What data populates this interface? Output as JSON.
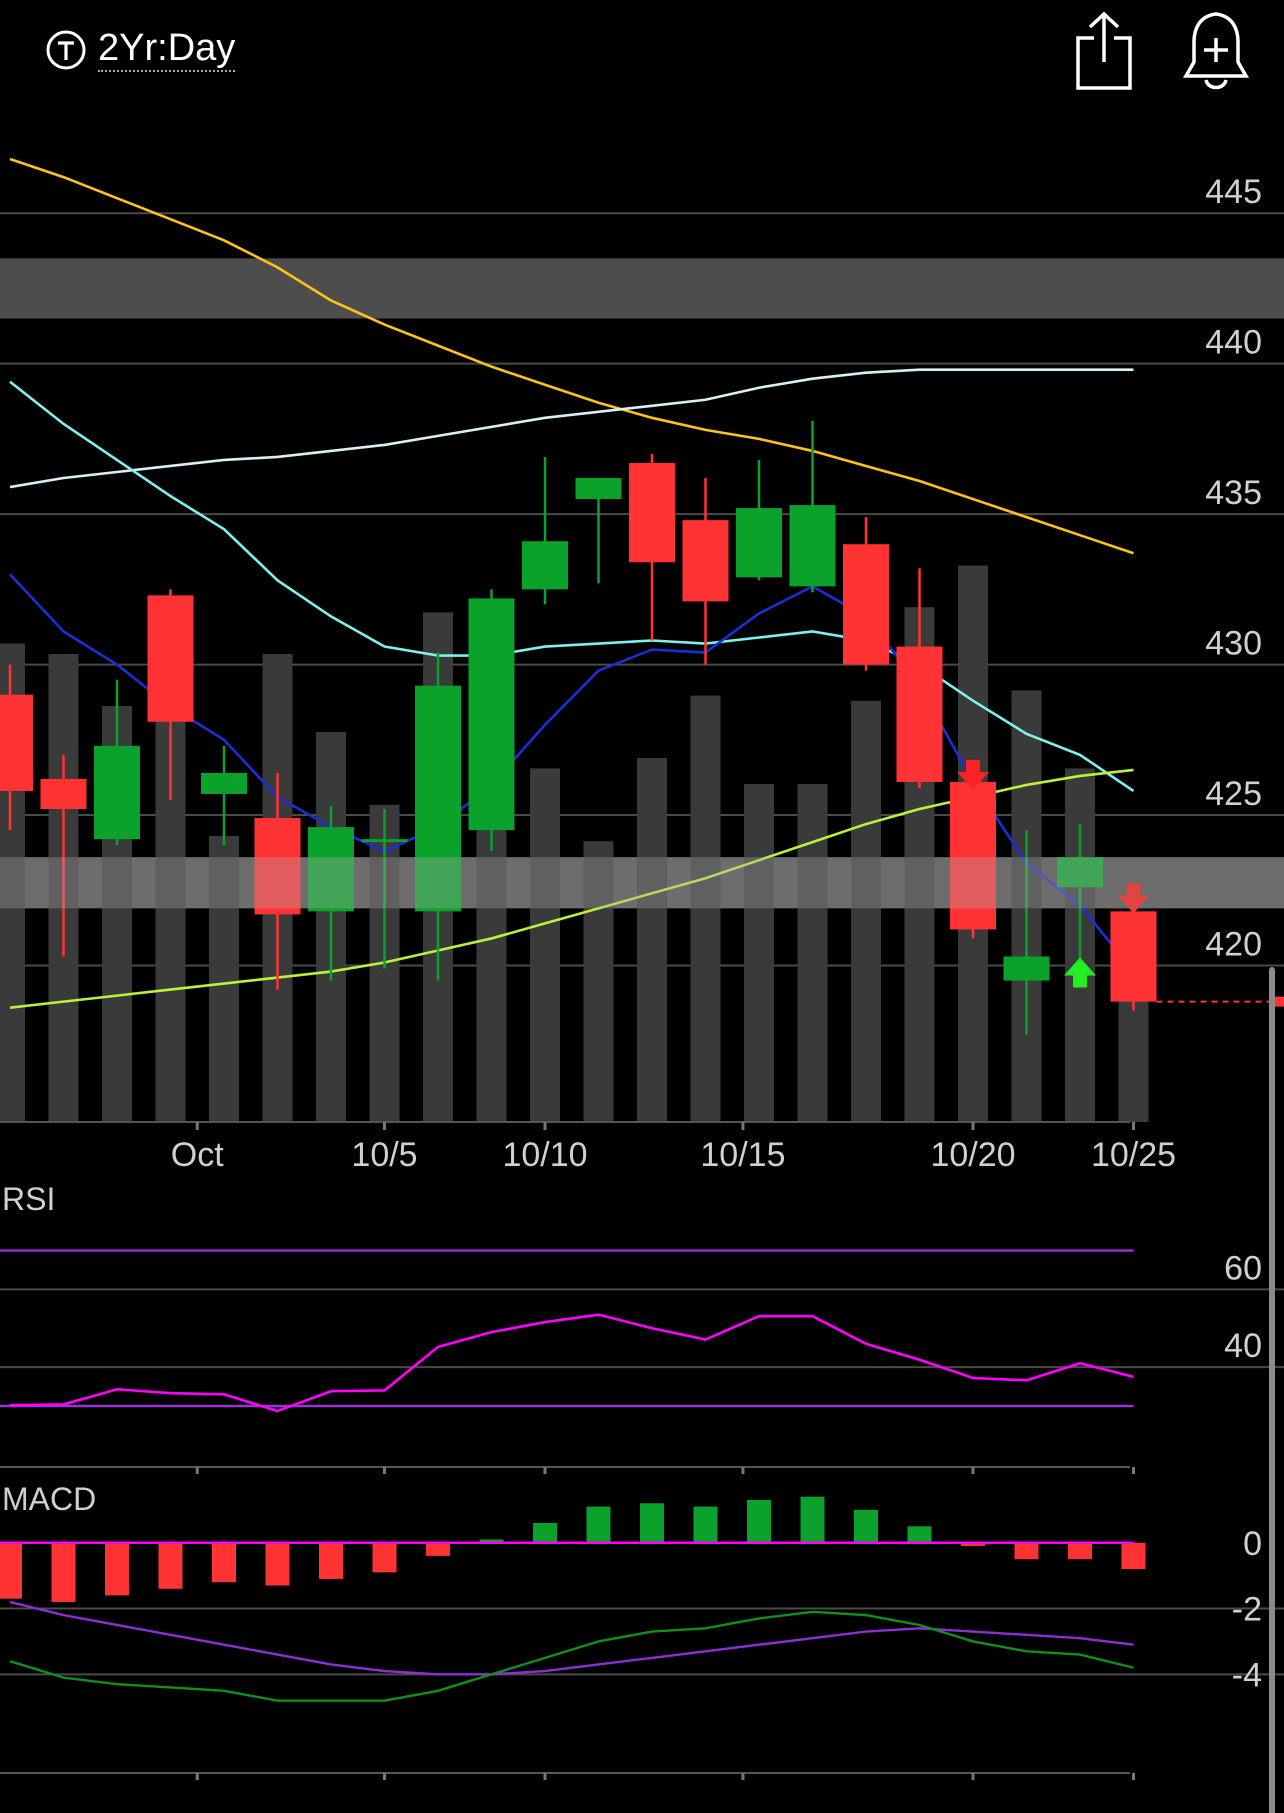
{
  "header": {
    "period_label": "2Yr:Day",
    "period_icon": "T-circle-icon",
    "share_icon": "share-icon",
    "alert_icon": "bell-plus-icon"
  },
  "colors": {
    "up": "#0aa22a",
    "down": "#ff3333",
    "volume": "#3a3a3a",
    "grid": "#4a4a4a",
    "ma_yellow": "#ffc21a",
    "ma_white": "#d8f0f5",
    "ma_cyan": "#7ff0ee",
    "ma_blue": "#1a2fd6",
    "ma_lime": "#b8f23a",
    "rsi_line": "#ff00ff",
    "rsi_bands": "#9a30d8",
    "macd_line": "#118f1a",
    "macd_signal": "#8a2fd6",
    "macd_zero": "#ff00ff"
  },
  "chart_data": [
    {
      "type": "candlestick",
      "x_ticks": [
        "Oct",
        "10/5",
        "10/10",
        "10/15",
        "10/20",
        "10/25"
      ],
      "y_ticks": [
        445,
        440,
        435,
        430,
        425,
        420
      ],
      "ylim": [
        414.8,
        447.1
      ],
      "grid": true,
      "bands": [
        {
          "low": 441.5,
          "high": 443.5
        },
        {
          "low": 421.9,
          "high": 423.6
        }
      ],
      "last_price": 418.8,
      "candles": [
        {
          "o": 429.0,
          "h": 430.0,
          "l": 424.5,
          "c": 425.8
        },
        {
          "o": 426.2,
          "h": 427.0,
          "l": 420.3,
          "c": 425.2
        },
        {
          "o": 424.2,
          "h": 429.5,
          "l": 424.0,
          "c": 427.3
        },
        {
          "o": 432.3,
          "h": 432.5,
          "l": 425.5,
          "c": 428.1
        },
        {
          "o": 425.7,
          "h": 427.3,
          "l": 424.0,
          "c": 426.4
        },
        {
          "o": 424.9,
          "h": 426.4,
          "l": 419.2,
          "c": 421.7
        },
        {
          "o": 421.8,
          "h": 425.3,
          "l": 419.5,
          "c": 424.6
        },
        {
          "o": 424.2,
          "h": 425.2,
          "l": 419.9,
          "c": 424.2
        },
        {
          "o": 421.8,
          "h": 430.4,
          "l": 419.5,
          "c": 429.3
        },
        {
          "o": 424.5,
          "h": 432.5,
          "l": 423.8,
          "c": 432.2
        },
        {
          "o": 432.5,
          "h": 436.9,
          "l": 432.0,
          "c": 434.1
        },
        {
          "o": 435.5,
          "h": 436.2,
          "l": 432.7,
          "c": 436.2
        },
        {
          "o": 436.7,
          "h": 437.0,
          "l": 430.8,
          "c": 433.4
        },
        {
          "o": 434.8,
          "h": 436.2,
          "l": 430.0,
          "c": 432.1
        },
        {
          "o": 432.9,
          "h": 436.8,
          "l": 432.8,
          "c": 435.2
        },
        {
          "o": 432.6,
          "h": 438.1,
          "l": 432.4,
          "c": 435.3
        },
        {
          "o": 434.0,
          "h": 434.9,
          "l": 429.8,
          "c": 430.0
        },
        {
          "o": 430.6,
          "h": 433.2,
          "l": 425.9,
          "c": 426.1
        },
        {
          "o": 426.1,
          "h": 426.3,
          "l": 420.9,
          "c": 421.2
        },
        {
          "o": 419.5,
          "h": 424.5,
          "l": 417.7,
          "c": 420.3
        },
        {
          "o": 422.6,
          "h": 424.7,
          "l": 419.8,
          "c": 423.6
        },
        {
          "o": 421.8,
          "h": 421.8,
          "l": 418.5,
          "c": 418.8
        }
      ],
      "volume_relative": [
        0.92,
        0.9,
        0.8,
        1.0,
        0.55,
        0.9,
        0.75,
        0.61,
        0.98,
        0.7,
        0.68,
        0.54,
        0.7,
        0.82,
        0.65,
        0.65,
        0.81,
        0.99,
        1.07,
        0.83,
        0.68,
        0.24
      ],
      "signals": [
        {
          "candle": 18,
          "dir": "sell",
          "price": 426.3
        },
        {
          "candle": 20,
          "dir": "buy",
          "price": 419.8
        },
        {
          "candle": 21,
          "dir": "sell",
          "price": 422.2
        }
      ],
      "moving_averages": [
        {
          "color_key": "ma_yellow",
          "values": [
            446.8,
            446.2,
            445.5,
            444.8,
            444.1,
            443.2,
            442.1,
            441.3,
            440.6,
            439.9,
            439.3,
            438.7,
            438.2,
            437.8,
            437.5,
            437.1,
            436.6,
            436.1,
            435.5,
            434.9,
            434.3,
            433.7
          ]
        },
        {
          "color_key": "ma_white",
          "values": [
            435.9,
            436.2,
            436.4,
            436.6,
            436.8,
            436.9,
            437.1,
            437.3,
            437.6,
            437.9,
            438.2,
            438.4,
            438.6,
            438.8,
            439.2,
            439.5,
            439.7,
            439.8,
            439.8,
            439.8,
            439.8,
            439.8
          ]
        },
        {
          "color_key": "ma_cyan",
          "values": [
            439.4,
            438.0,
            436.8,
            435.6,
            434.5,
            432.8,
            431.6,
            430.6,
            430.3,
            430.3,
            430.6,
            430.7,
            430.8,
            430.7,
            430.9,
            431.1,
            430.8,
            430.0,
            428.8,
            427.7,
            427.0,
            425.8
          ]
        },
        {
          "color_key": "ma_blue",
          "values": [
            433.0,
            431.1,
            430.0,
            428.6,
            427.5,
            425.6,
            424.6,
            423.8,
            424.6,
            426.0,
            428.0,
            429.8,
            430.5,
            430.4,
            431.7,
            432.6,
            431.6,
            429.3,
            426.1,
            423.4,
            422.0,
            419.8
          ]
        },
        {
          "color_key": "ma_lime",
          "values": [
            418.6,
            418.8,
            419.0,
            419.2,
            419.4,
            419.6,
            419.8,
            420.1,
            420.5,
            420.9,
            421.4,
            421.9,
            422.4,
            422.9,
            423.5,
            424.1,
            424.7,
            425.2,
            425.6,
            426.0,
            426.3,
            426.5
          ]
        }
      ]
    },
    {
      "type": "line",
      "title": "RSI",
      "y_ticks": [
        60,
        40
      ],
      "ylim": [
        14.3,
        74
      ],
      "bands": [
        70,
        30
      ],
      "values": [
        30.2,
        30.4,
        34.3,
        33.3,
        33.0,
        28.7,
        33.8,
        34.0,
        45.2,
        49.0,
        51.6,
        53.5,
        50.0,
        47.1,
        53.1,
        53.1,
        46.0,
        41.9,
        37.2,
        36.6,
        41.0,
        37.5
      ]
    },
    {
      "type": "bar",
      "title": "MACD",
      "y_ticks": [
        0,
        -2,
        -4
      ],
      "ylim": [
        -7.0,
        1.3
      ],
      "histogram": [
        -1.7,
        -1.8,
        -1.6,
        -1.4,
        -1.2,
        -1.3,
        -1.1,
        -0.9,
        -0.4,
        0.1,
        0.6,
        1.1,
        1.2,
        1.1,
        1.3,
        1.4,
        1.0,
        0.5,
        -0.1,
        -0.5,
        -0.5,
        -0.8
      ],
      "macd": [
        -3.6,
        -4.1,
        -4.3,
        -4.4,
        -4.5,
        -4.8,
        -4.8,
        -4.8,
        -4.5,
        -4.0,
        -3.5,
        -3.0,
        -2.7,
        -2.6,
        -2.3,
        -2.1,
        -2.2,
        -2.5,
        -3.0,
        -3.3,
        -3.4,
        -3.8
      ],
      "signal": [
        -1.8,
        -2.2,
        -2.5,
        -2.8,
        -3.1,
        -3.4,
        -3.7,
        -3.9,
        -4.0,
        -4.0,
        -3.9,
        -3.7,
        -3.5,
        -3.3,
        -3.1,
        -2.9,
        -2.7,
        -2.6,
        -2.7,
        -2.8,
        -2.9,
        -3.1
      ]
    }
  ]
}
